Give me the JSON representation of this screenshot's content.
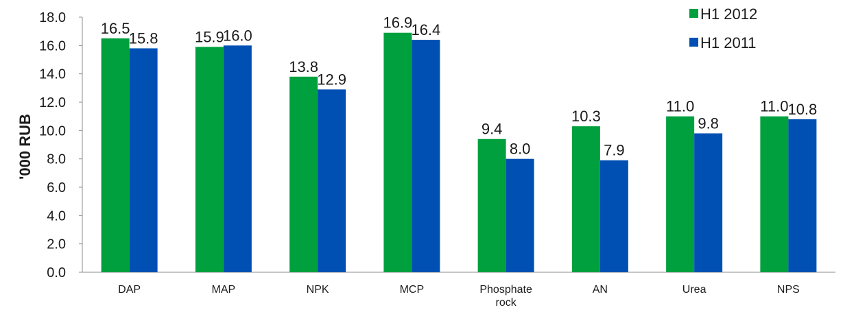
{
  "chart_data": {
    "type": "bar",
    "title": "",
    "xlabel": "",
    "ylabel": "'000 RUB",
    "ylim": [
      0,
      18
    ],
    "yticks": [
      "0.0",
      "2.0",
      "4.0",
      "6.0",
      "8.0",
      "10.0",
      "12.0",
      "14.0",
      "16.0",
      "18.0"
    ],
    "categories": [
      [
        "DAP"
      ],
      [
        "MAP"
      ],
      [
        "NPK"
      ],
      [
        "MCP"
      ],
      [
        "Phosphate",
        "rock"
      ],
      [
        "AN"
      ],
      [
        "Urea"
      ],
      [
        "NPS"
      ]
    ],
    "series": [
      {
        "name": "H1 2012",
        "color": "#00a03e",
        "values": [
          16.5,
          15.9,
          13.8,
          16.9,
          9.4,
          10.3,
          11.0,
          11.0
        ]
      },
      {
        "name": "H1 2011",
        "color": "#0050b4",
        "values": [
          15.8,
          16.0,
          12.9,
          16.4,
          8.0,
          7.9,
          9.8,
          10.8
        ]
      }
    ],
    "grid": false,
    "legend_position": "top-right"
  }
}
